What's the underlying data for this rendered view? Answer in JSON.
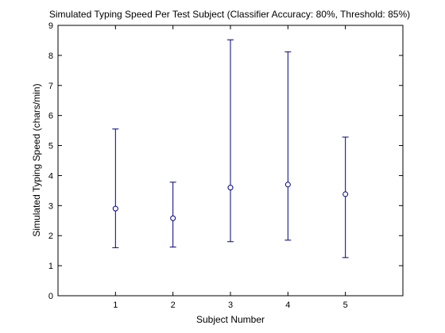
{
  "chart_data": {
    "type": "scatter",
    "title": "Simulated Typing Speed Per Test Subject (Classifier Accuracy: 80%, Threshold: 85%)",
    "xlabel": "Subject Number",
    "ylabel": "Simulated Typing Speed (chars/min)",
    "xlim": [
      0,
      6
    ],
    "ylim": [
      0,
      9
    ],
    "xticks": [
      "1",
      "2",
      "3",
      "4",
      "5"
    ],
    "yticks": [
      "0",
      "1",
      "2",
      "3",
      "4",
      "5",
      "6",
      "7",
      "8",
      "9"
    ],
    "grid": false,
    "points": [
      {
        "x": 1,
        "y": 2.9,
        "low": 1.6,
        "high": 5.55
      },
      {
        "x": 2,
        "y": 2.58,
        "low": 1.62,
        "high": 3.78
      },
      {
        "x": 3,
        "y": 3.6,
        "low": 1.8,
        "high": 8.52
      },
      {
        "x": 4,
        "y": 3.7,
        "low": 1.85,
        "high": 8.12
      },
      {
        "x": 5,
        "y": 3.38,
        "low": 1.27,
        "high": 5.28
      }
    ],
    "colors": {
      "series": "#000080",
      "axes": "#000000"
    }
  }
}
